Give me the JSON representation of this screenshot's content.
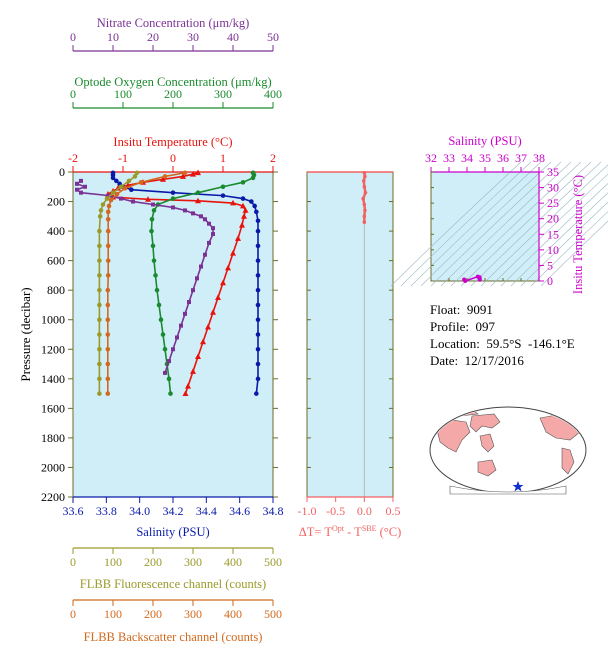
{
  "colors": {
    "nitrate": "#7b3294",
    "oxygen": "#1a8a2e",
    "temperature": "#e8130d",
    "salinity": "#0a1aa8",
    "fluorescence": "#9a9a2a",
    "backscatter": "#d2691e",
    "delta_t": "#f26262",
    "ts_axis": "#cc00cc",
    "panel_bg": "#d0eef8",
    "axis_olive": "#7a7a22"
  },
  "info": {
    "float_label": "Float:",
    "float_value": "9091",
    "profile_label": "Profile:",
    "profile_value": "097",
    "location_label": "Location:",
    "location_value": "59.5°S  -146.1°E",
    "date_label": "Date:",
    "date_value": "12/17/2016"
  },
  "chart_data": [
    {
      "type": "line",
      "panel": "profiles",
      "ylabel": "Pressure (decibar)",
      "ylim": [
        2200,
        0
      ],
      "yticks": [
        0,
        200,
        400,
        600,
        800,
        1000,
        1200,
        1400,
        1600,
        1800,
        2000,
        2200
      ],
      "axes": {
        "nitrate": {
          "label": "Nitrate Concentration (μm/kg)",
          "range": [
            0,
            50
          ],
          "ticks": [
            0,
            10,
            20,
            30,
            40,
            50
          ]
        },
        "oxygen": {
          "label": "Optode Oxygen Concentration (μm/kg)",
          "range": [
            0,
            400
          ],
          "ticks": [
            0,
            100,
            200,
            300,
            400
          ]
        },
        "temperature": {
          "label": "Insitu Temperature (°C)",
          "range": [
            -2,
            2
          ],
          "ticks": [
            -2,
            -1,
            0,
            1,
            2
          ]
        },
        "salinity": {
          "label": "Salinity (PSU)",
          "range": [
            33.6,
            34.8
          ],
          "ticks": [
            33.6,
            33.8,
            34.0,
            34.2,
            34.4,
            34.6,
            34.8
          ],
          "tick_labels": [
            "33.6",
            "33.8",
            "34.0",
            "34.2",
            "34.4",
            "34.6",
            "34.8"
          ]
        },
        "fluorescence": {
          "label": "FLBB Fluorescence channel (counts)",
          "range": [
            0,
            500
          ],
          "ticks": [
            0,
            100,
            200,
            300,
            400,
            500
          ]
        },
        "backscatter": {
          "label": "FLBB Backscatter channel (counts)",
          "range": [
            0,
            500
          ],
          "ticks": [
            0,
            100,
            200,
            300,
            400,
            500
          ]
        }
      },
      "series": [
        {
          "key": "temperature",
          "marker": "triangle",
          "points": [
            [
              0.5,
              5
            ],
            [
              0.4,
              15
            ],
            [
              0.2,
              30
            ],
            [
              -0.2,
              50
            ],
            [
              -0.6,
              70
            ],
            [
              -0.9,
              90
            ],
            [
              -1.1,
              110
            ],
            [
              -1.2,
              130
            ],
            [
              -1.3,
              150
            ],
            [
              -1.2,
              170
            ],
            [
              -0.5,
              185
            ],
            [
              0.5,
              195
            ],
            [
              1.2,
              210
            ],
            [
              1.4,
              230
            ],
            [
              1.45,
              260
            ],
            [
              1.42,
              300
            ],
            [
              1.38,
              360
            ],
            [
              1.3,
              450
            ],
            [
              1.2,
              550
            ],
            [
              1.1,
              650
            ],
            [
              1.0,
              750
            ],
            [
              0.9,
              850
            ],
            [
              0.8,
              950
            ],
            [
              0.7,
              1050
            ],
            [
              0.6,
              1150
            ],
            [
              0.5,
              1250
            ],
            [
              0.4,
              1350
            ],
            [
              0.3,
              1450
            ],
            [
              0.25,
              1500
            ]
          ]
        },
        {
          "key": "salinity",
          "marker": "circle",
          "points": [
            [
              33.84,
              5
            ],
            [
              33.84,
              20
            ],
            [
              33.84,
              40
            ],
            [
              33.86,
              60
            ],
            [
              33.88,
              80
            ],
            [
              33.9,
              100
            ],
            [
              33.95,
              120
            ],
            [
              34.2,
              140
            ],
            [
              34.5,
              160
            ],
            [
              34.62,
              180
            ],
            [
              34.67,
              200
            ],
            [
              34.69,
              230
            ],
            [
              34.7,
              270
            ],
            [
              34.71,
              330
            ],
            [
              34.71,
              400
            ],
            [
              34.71,
              500
            ],
            [
              34.71,
              600
            ],
            [
              34.71,
              700
            ],
            [
              34.71,
              800
            ],
            [
              34.71,
              900
            ],
            [
              34.71,
              1000
            ],
            [
              34.71,
              1100
            ],
            [
              34.71,
              1200
            ],
            [
              34.71,
              1300
            ],
            [
              34.71,
              1400
            ],
            [
              34.7,
              1500
            ]
          ]
        },
        {
          "key": "oxygen",
          "marker": "circle",
          "points": [
            [
              360,
              5
            ],
            [
              362,
              20
            ],
            [
              360,
              40
            ],
            [
              340,
              70
            ],
            [
              300,
              100
            ],
            [
              250,
              140
            ],
            [
              200,
              180
            ],
            [
              170,
              220
            ],
            [
              162,
              260
            ],
            [
              158,
              320
            ],
            [
              157,
              400
            ],
            [
              160,
              500
            ],
            [
              162,
              600
            ],
            [
              165,
              700
            ],
            [
              168,
              800
            ],
            [
              172,
              900
            ],
            [
              176,
              1000
            ],
            [
              180,
              1100
            ],
            [
              184,
              1200
            ],
            [
              188,
              1300
            ],
            [
              192,
              1400
            ],
            [
              195,
              1500
            ]
          ]
        },
        {
          "key": "nitrate",
          "marker": "square",
          "points": [
            [
              2,
              60
            ],
            [
              1,
              80
            ],
            [
              3,
              100
            ],
            [
              1,
              120
            ],
            [
              2,
              140
            ],
            [
              9,
              160
            ],
            [
              12,
              180
            ],
            [
              15,
              200
            ],
            [
              20,
              220
            ],
            [
              25,
              240
            ],
            [
              28,
              260
            ],
            [
              30,
              280
            ],
            [
              32,
              300
            ],
            [
              33,
              320
            ],
            [
              34,
              350
            ],
            [
              35,
              380
            ],
            [
              35,
              420
            ],
            [
              34,
              480
            ],
            [
              33,
              560
            ],
            [
              32,
              640
            ],
            [
              31,
              720
            ],
            [
              30,
              800
            ],
            [
              29,
              880
            ],
            [
              28,
              960
            ],
            [
              27,
              1040
            ],
            [
              26,
              1120
            ],
            [
              25,
              1200
            ],
            [
              24,
              1280
            ],
            [
              23,
              1360
            ]
          ]
        },
        {
          "key": "fluorescence",
          "marker": "circle",
          "points": [
            [
              160,
              5
            ],
            [
              155,
              30
            ],
            [
              140,
              60
            ],
            [
              120,
              100
            ],
            [
              100,
              140
            ],
            [
              85,
              180
            ],
            [
              75,
              220
            ],
            [
              70,
              260
            ],
            [
              68,
              300
            ],
            [
              66,
              400
            ],
            [
              66,
              500
            ],
            [
              66,
              600
            ],
            [
              66,
              700
            ],
            [
              66,
              800
            ],
            [
              66,
              900
            ],
            [
              66,
              1000
            ],
            [
              66,
              1100
            ],
            [
              66,
              1200
            ],
            [
              66,
              1300
            ],
            [
              66,
              1400
            ],
            [
              66,
              1500
            ]
          ]
        },
        {
          "key": "backscatter",
          "marker": "circle",
          "points": [
            [
              280,
              5
            ],
            [
              230,
              30
            ],
            [
              170,
              70
            ],
            [
              130,
              110
            ],
            [
              110,
              150
            ],
            [
              95,
              190
            ],
            [
              90,
              230
            ],
            [
              88,
              270
            ],
            [
              88,
              320
            ],
            [
              88,
              400
            ],
            [
              88,
              500
            ],
            [
              88,
              600
            ],
            [
              88,
              700
            ],
            [
              87,
              800
            ],
            [
              87,
              900
            ],
            [
              87,
              1000
            ],
            [
              87,
              1100
            ],
            [
              87,
              1200
            ],
            [
              87,
              1300
            ],
            [
              87,
              1400
            ],
            [
              87,
              1500
            ]
          ]
        }
      ]
    },
    {
      "type": "line",
      "panel": "delta_t",
      "xlabel": "ΔT= T^Opt - T^SBE (°C)",
      "xlabel_parts": {
        "prefix": "ΔT= T",
        "sup1": "Opt",
        "mid": " - T",
        "sup2": "SBE",
        "suffix": " (°C)"
      },
      "xlim": [
        -1.0,
        0.5
      ],
      "xticks": [
        -1.0,
        -0.5,
        0.0,
        0.5
      ],
      "xtick_labels": [
        "-1.0",
        "-0.5",
        "0.0",
        "0.5"
      ],
      "ylim": [
        2200,
        0
      ],
      "points": [
        [
          0.0,
          5
        ],
        [
          0.01,
          30
        ],
        [
          -0.01,
          60
        ],
        [
          0.0,
          100
        ],
        [
          0.02,
          140
        ],
        [
          -0.02,
          180
        ],
        [
          0.0,
          220
        ],
        [
          0.01,
          260
        ],
        [
          0.0,
          300
        ],
        [
          0.0,
          340
        ]
      ]
    },
    {
      "type": "scatter",
      "panel": "ts_diagram",
      "xlabel": "Salinity (PSU)",
      "ylabel": "Insitu Temperature (°C)",
      "xlim": [
        32,
        38
      ],
      "ylim": [
        0,
        35
      ],
      "xticks": [
        32,
        33,
        34,
        35,
        36,
        37,
        38
      ],
      "yticks": [
        0,
        5,
        10,
        15,
        20,
        25,
        30,
        35
      ],
      "points": [
        [
          33.84,
          0.5
        ],
        [
          33.9,
          0.0
        ],
        [
          34.6,
          1.4
        ],
        [
          34.7,
          1.2
        ],
        [
          34.71,
          0.8
        ],
        [
          34.71,
          0.4
        ]
      ]
    }
  ]
}
